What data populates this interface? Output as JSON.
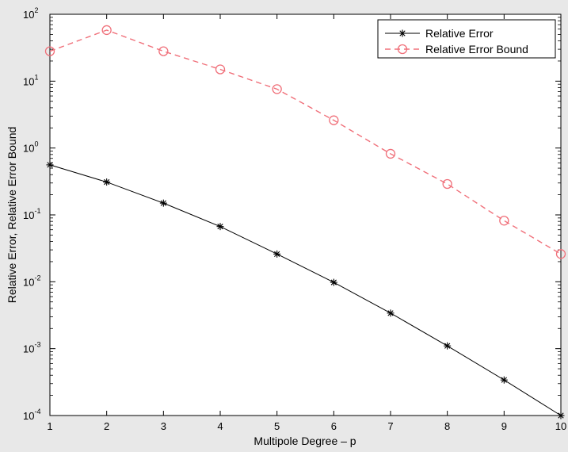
{
  "chart_data": {
    "type": "line",
    "yscale": "log",
    "xlabel": "Multipole Degree – p",
    "ylabel": "Relative Error, Relative Error Bound",
    "xlim": [
      1,
      10
    ],
    "ylim": [
      0.0001,
      100
    ],
    "x": [
      1,
      2,
      3,
      4,
      5,
      6,
      7,
      8,
      9,
      10
    ],
    "xticks": [
      "1",
      "2",
      "3",
      "4",
      "5",
      "6",
      "7",
      "8",
      "9",
      "10"
    ],
    "yticks": [
      {
        "base": "10",
        "exp": "-4"
      },
      {
        "base": "10",
        "exp": "-3"
      },
      {
        "base": "10",
        "exp": "-2"
      },
      {
        "base": "10",
        "exp": "-1"
      },
      {
        "base": "10",
        "exp": "0"
      },
      {
        "base": "10",
        "exp": "1"
      },
      {
        "base": "10",
        "exp": "2"
      }
    ],
    "grid": false,
    "legend_position": "top-right",
    "series": [
      {
        "name": "Relative Error",
        "color": "#000000",
        "line": "solid",
        "marker": "asterisk",
        "values": [
          0.56,
          0.31,
          0.15,
          0.067,
          0.026,
          0.0098,
          0.0034,
          0.0011,
          0.00034,
          0.0001
        ]
      },
      {
        "name": "Relative Error Bound",
        "color": "#f0707a",
        "line": "dashed",
        "marker": "circle",
        "values": [
          28,
          58,
          28,
          15,
          7.6,
          2.6,
          0.82,
          0.29,
          0.082,
          0.026
        ]
      }
    ]
  }
}
